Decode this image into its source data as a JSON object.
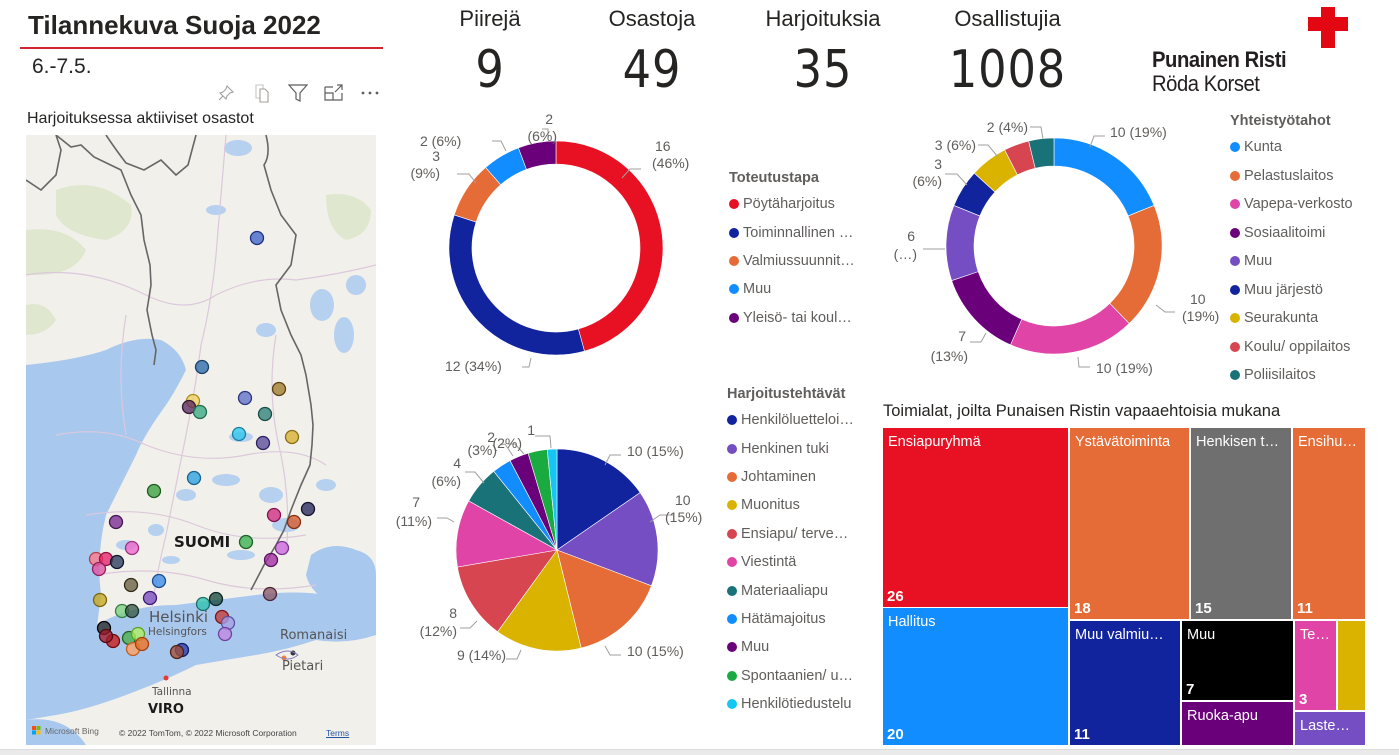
{
  "header": {
    "title": "Tilannekuva Suoja 2022",
    "date": "6.-7.5."
  },
  "visual_header_icons": [
    "pin-icon",
    "copy-icon",
    "filter-icon",
    "focus-mode-icon",
    "more-options-icon"
  ],
  "kpis": [
    {
      "label": "Piirejä",
      "value": "9"
    },
    {
      "label": "Osastoja",
      "value": "49"
    },
    {
      "label": "Harjoituksia",
      "value": "35"
    },
    {
      "label": "Osallistujia",
      "value": "1008"
    }
  ],
  "logo": {
    "line1": "Punainen Risti",
    "line2": "Röda Korset",
    "color": "#e30613"
  },
  "map": {
    "title": "Harjoituksessa aktiiviset osastot",
    "labels": {
      "country": "SUOMI",
      "helsinki": "Helsinki",
      "helsingfors": "Helsingfors",
      "romanaisi": "Romanaisi",
      "pietari": "Pietari",
      "tallinna": "Tallinna",
      "viro": "VIRO"
    },
    "bing": "Microsoft Bing",
    "copyright": "© 2022 TomTom, © 2022 Microsoft Corporation",
    "terms": "Terms"
  },
  "chart_data": [
    {
      "type": "pie",
      "variant": "donut",
      "title": "Toteutustapa",
      "legend_position": "right",
      "categories": [
        "Pöytäharjoitus",
        "Toiminnallinen …",
        "Valmiussuunnit…",
        "Muu",
        "Yleisö- tai koul…"
      ],
      "values": [
        16,
        12,
        3,
        2,
        2
      ],
      "data_labels": [
        [
          "16",
          "(46%)"
        ],
        [
          "12 (34%)"
        ],
        [
          "3",
          "(9%)"
        ],
        [
          "2 (6%)"
        ],
        [
          "2",
          "(6%)"
        ]
      ],
      "colors": [
        "#e81123",
        "#12239e",
        "#e66c37",
        "#118dff",
        "#6b007b"
      ]
    },
    {
      "type": "pie",
      "variant": "donut",
      "title": "Yhteistyötahot",
      "legend_position": "right",
      "categories": [
        "Kunta",
        "Pelastuslaitos",
        "Vapepa-verkosto",
        "Sosiaalitoimi",
        "Muu",
        "Muu järjestö",
        "Seurakunta",
        "Koulu/ oppilaitos",
        "Poliisilaitos"
      ],
      "values": [
        10,
        10,
        10,
        7,
        6,
        3,
        3,
        2,
        2
      ],
      "data_labels": [
        [
          "10 (19%)"
        ],
        [
          "10",
          "(19%)"
        ],
        [
          "10 (19%)"
        ],
        [
          "7",
          "(13%)"
        ],
        [
          "6",
          "(…)"
        ],
        [
          "3",
          "(6%)"
        ],
        [
          "3 (6%)"
        ],
        [],
        [
          "2 (4%)"
        ]
      ],
      "colors": [
        "#118dff",
        "#e66c37",
        "#e044a7",
        "#6b007b",
        "#744ec2",
        "#12239e",
        "#d9b300",
        "#d64550",
        "#197278"
      ]
    },
    {
      "type": "pie",
      "title": "Harjoitustehtävät",
      "legend_position": "right",
      "categories": [
        "Henkilöluetteloi…",
        "Henkinen tuki",
        "Johtaminen",
        "Muonitus",
        "Ensiapu/ terve…",
        "Viestintä",
        "Materiaaliapu",
        "Hätämajoitus",
        "Muu",
        "Spontaanien/ u…",
        "Henkilötiedustelu"
      ],
      "values": [
        10,
        10,
        10,
        9,
        8,
        7,
        4,
        2,
        2,
        2,
        1
      ],
      "data_labels": [
        [
          "10 (15%)"
        ],
        [
          "10",
          "(15%)"
        ],
        [
          "10 (15%)"
        ],
        [
          "9 (14%)"
        ],
        [
          "8",
          "(12%)"
        ],
        [
          "7",
          "(11%)"
        ],
        [
          "4",
          "(6%)"
        ],
        [
          "2",
          "(3%)"
        ],
        [
          "(2%)"
        ],
        [],
        [
          "1"
        ]
      ],
      "colors": [
        "#12239e",
        "#744ec2",
        "#e66c37",
        "#d9b300",
        "#d64550",
        "#e044a7",
        "#197278",
        "#118dff",
        "#6b007b",
        "#1aab40",
        "#15c6f4"
      ]
    },
    {
      "type": "treemap",
      "title": "Toimialat, joilta Punaisen Ristin vapaaehtoisia mukana",
      "categories": [
        "Ensiapuryhmä",
        "Hallitus",
        "Ystävätoiminta",
        "Henkisen t…",
        "Ensihu…",
        "Muu valmiu…",
        "Muu",
        "Ruoka-apu",
        "Te…",
        "",
        "Laste…"
      ],
      "values": [
        26,
        20,
        18,
        15,
        11,
        11,
        7,
        null,
        3,
        null,
        null
      ],
      "value_labels": [
        "26",
        "20",
        "18",
        "15",
        "11",
        "11",
        "7",
        "",
        "3",
        "",
        ""
      ],
      "colors": [
        "#e81123",
        "#118dff",
        "#e66c37",
        "#6f6f6f",
        "#e66c37",
        "#12239e",
        "#000000",
        "#6b007b",
        "#e044a7",
        "#d9b300",
        "#744ec2"
      ]
    }
  ]
}
